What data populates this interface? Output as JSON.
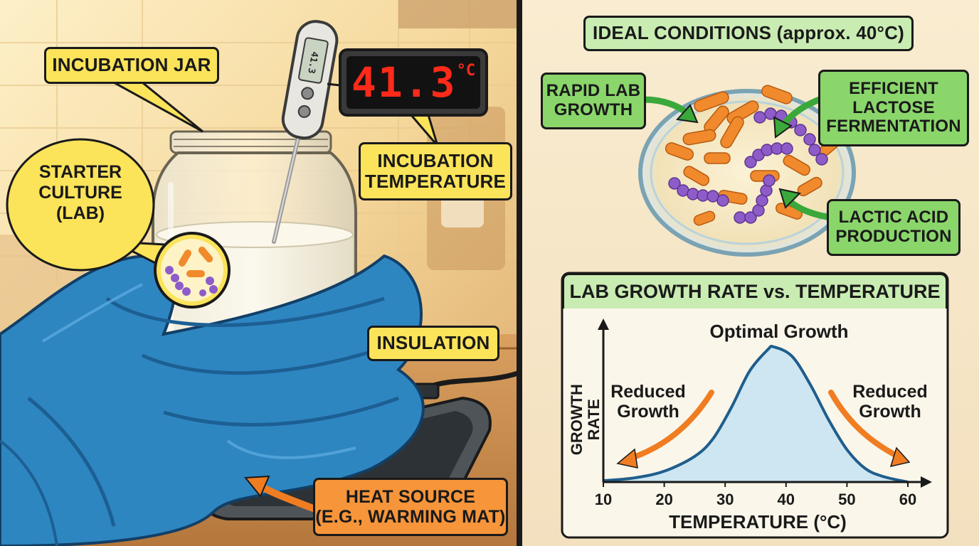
{
  "left_panel": {
    "jar_label": "INCUBATION JAR",
    "display_reading": "41.3",
    "display_unit": "°C",
    "temperature_label": "INCUBATION\nTEMPERATURE",
    "culture_label": "STARTER\nCULTURE\n(LAB)",
    "insulation_label": "INSULATION",
    "heat_label": "HEAT SOURCE\n(E.G., WARMING MAT)"
  },
  "right_panel": {
    "conditions_title": "IDEAL CONDITIONS (approx. 40°C)",
    "rapid_growth": "RAPID LAB\nGROWTH",
    "fermentation": "EFFICIENT\nLACTOSE\nFERMENTATION",
    "acid": "LACTIC ACID\nPRODUCTION"
  },
  "colors": {
    "label_yellow": "#fbe35a",
    "label_green": "#8ad66b",
    "label_orange": "#f7953a",
    "towel_blue": "#2e86c1",
    "curve_fill": "#cde6f2",
    "curve_line": "#1f5e8c",
    "rod_bacteria": "#f08a2c",
    "cocci_bacteria": "#8e5cc8"
  },
  "icons": [
    "thermometer-icon",
    "jar-icon",
    "towel-icon",
    "warming-mat-icon",
    "petri-dish-icon",
    "bacteria-icon"
  ],
  "chart_data": {
    "type": "area",
    "title": "LAB GROWTH RATE vs. TEMPERATURE",
    "xlabel": "TEMPERATURE (°C)",
    "ylabel": "GROWTH RATE",
    "xlim": [
      10,
      60
    ],
    "xticks": [
      "10",
      "20",
      "30",
      "40",
      "50",
      "60"
    ],
    "ylim": [
      0,
      1
    ],
    "x": [
      10,
      15,
      20,
      25,
      28,
      31,
      34,
      37,
      38,
      41,
      44,
      47,
      50,
      53,
      56,
      60
    ],
    "y": [
      0.01,
      0.03,
      0.08,
      0.19,
      0.32,
      0.55,
      0.82,
      0.98,
      1.0,
      0.93,
      0.72,
      0.46,
      0.24,
      0.1,
      0.04,
      0.0
    ],
    "annotations": {
      "peak": "Optimal Growth",
      "low_left": "Reduced\nGrowth",
      "low_right": "Reduced\nGrowth"
    },
    "grid": false
  }
}
